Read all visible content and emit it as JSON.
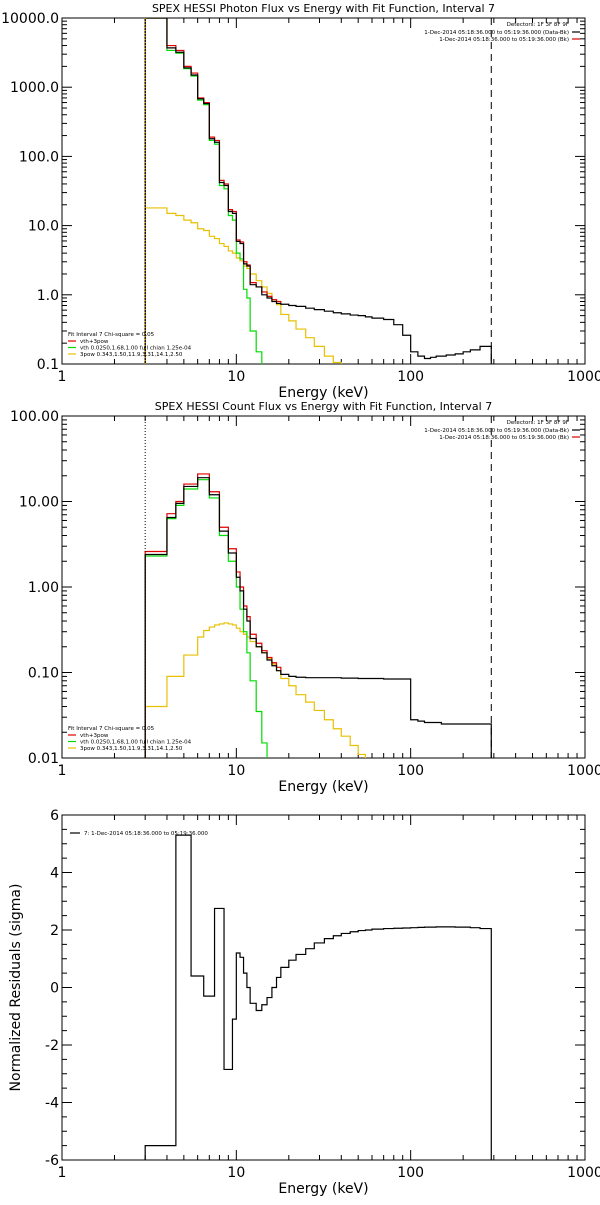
{
  "colors": {
    "black": "#000000",
    "red": "#e00000",
    "green": "#00dd00",
    "orange": "#e8c000",
    "bg": "#ffffff"
  },
  "chart_data": [
    {
      "type": "line",
      "title": "SPEX HESSI Photon Flux vs Energy with Fit Function, Interval 7",
      "xlabel": "Energy (keV)",
      "ylabel": "",
      "xscale": "log",
      "yscale": "log",
      "xlim": [
        1,
        1000
      ],
      "ylim": [
        0.1,
        10000
      ],
      "xticks": [
        "1",
        "10",
        "100",
        "1000"
      ],
      "yticks": [
        "0.1",
        "1.0",
        "10.0",
        "100.0",
        "1000.0",
        "10000.0"
      ],
      "detectors_label": "Detectors: 1F 3F 8F 9F",
      "legend_right": [
        {
          "text": "1-Dec-2014 05:18:36.000 to 05:19:36.000 (Data-Bk)",
          "color": "#000000"
        },
        {
          "text": "1-Dec-2014 05:18:36.000 to 05:19:36.000 (Bk)",
          "color": "#e00000"
        }
      ],
      "fit_header": "Fit Interval 7   Chi-square = 0.05",
      "legend_left": [
        {
          "text": "vth+3pow",
          "color": "#e00000"
        },
        {
          "text": "vth 0.0250,1.68,1.00  full chian 1.25e-04",
          "color": "#00dd00"
        },
        {
          "text": "3pow 0.343,1.50,11.9,3.31,14.1,2.50",
          "color": "#e8c000"
        }
      ],
      "marker_lines": [
        {
          "x": 3,
          "style": "dotted",
          "color": "#e8c000"
        },
        {
          "x": 290,
          "style": "dashed",
          "color": "#000000"
        }
      ],
      "series": [
        {
          "name": "Data-Bk",
          "color": "#000000",
          "edges": [
            3,
            3.5,
            4,
            4.5,
            5,
            5.5,
            6,
            6.5,
            7,
            7.5,
            8,
            8.5,
            9,
            9.5,
            10,
            10.5,
            11,
            11.5,
            12,
            13,
            14,
            15,
            16,
            17,
            18,
            20,
            22,
            25,
            28,
            32,
            36,
            40,
            45,
            50,
            55,
            60,
            70,
            80,
            90,
            100,
            110,
            120,
            130,
            140,
            160,
            180,
            200,
            220,
            250,
            290
          ],
          "values": [
            10000,
            10000,
            3700,
            3200,
            1900,
            1500,
            680,
            580,
            180,
            160,
            42,
            38,
            16,
            15,
            5.9,
            5.5,
            2.8,
            2.6,
            1.4,
            1.3,
            1.0,
            0.9,
            0.8,
            0.75,
            0.73,
            0.7,
            0.68,
            0.64,
            0.61,
            0.58,
            0.55,
            0.53,
            0.51,
            0.5,
            0.48,
            0.46,
            0.44,
            0.37,
            0.26,
            0.15,
            0.13,
            0.12,
            0.125,
            0.13,
            0.135,
            0.14,
            0.15,
            0.16,
            0.18
          ]
        },
        {
          "name": "vth+3pow",
          "color": "#e00000",
          "edges": [
            3,
            3.5,
            4,
            4.5,
            5,
            5.5,
            6,
            6.5,
            7,
            7.5,
            8,
            8.5,
            9,
            9.5,
            10,
            10.5,
            11,
            11.5,
            12,
            13,
            14,
            15,
            16,
            17,
            18
          ],
          "values": [
            10000,
            10000,
            4000,
            3400,
            2000,
            1600,
            700,
            600,
            190,
            170,
            45,
            40,
            17,
            16,
            6.2,
            5.8,
            3.0,
            2.7,
            1.5,
            1.3,
            1.1,
            0.95,
            0.85,
            0.8,
            0.76
          ]
        },
        {
          "name": "vth",
          "color": "#00dd00",
          "edges": [
            3,
            3.5,
            4,
            4.5,
            5,
            5.5,
            6,
            6.5,
            7,
            7.5,
            8,
            8.5,
            9,
            9.5,
            10,
            10.5,
            11,
            11.5,
            12,
            13,
            14
          ],
          "values": [
            10000,
            10000,
            3400,
            3100,
            1850,
            1450,
            650,
            560,
            170,
            150,
            38,
            34,
            14,
            12,
            4.0,
            3.3,
            1.2,
            0.9,
            0.3,
            0.15
          ]
        },
        {
          "name": "3pow",
          "color": "#e8c000",
          "edges": [
            3,
            3.5,
            4,
            4.5,
            5,
            5.5,
            6,
            6.5,
            7,
            7.5,
            8,
            8.5,
            9,
            9.5,
            10,
            10.5,
            11,
            11.5,
            12,
            13,
            14,
            15,
            16,
            17,
            18,
            20,
            22,
            25,
            28,
            32,
            36,
            40
          ],
          "values": [
            18,
            18,
            15,
            14,
            12,
            11,
            9,
            8.5,
            7,
            6.5,
            5.5,
            5,
            4.3,
            4,
            3.4,
            3.1,
            2.6,
            2.4,
            2.0,
            1.6,
            1.3,
            1.05,
            0.85,
            0.72,
            0.52,
            0.42,
            0.32,
            0.24,
            0.18,
            0.13,
            0.105
          ]
        }
      ]
    },
    {
      "type": "line",
      "title": "SPEX HESSI Count Flux vs Energy with Fit Function, Interval 7",
      "xlabel": "Energy (keV)",
      "ylabel": "",
      "xscale": "log",
      "yscale": "log",
      "xlim": [
        1,
        1000
      ],
      "ylim": [
        0.01,
        100
      ],
      "xticks": [
        "1",
        "10",
        "100",
        "1000"
      ],
      "yticks": [
        "0.01",
        "0.10",
        "1.00",
        "10.00",
        "100.00"
      ],
      "detectors_label": "Detectors: 1F 3F 8F 9F",
      "legend_right": [
        {
          "text": "1-Dec-2014 05:18:36.000 to 05:19:36.000 (Data-Bk)",
          "color": "#000000"
        },
        {
          "text": "1-Dec-2014 05:18:36.000 to 05:19:36.000 (Bk)",
          "color": "#e00000"
        }
      ],
      "fit_header": "Fit Interval 7   Chi-square = 0.05",
      "legend_left": [
        {
          "text": "vth+3pow",
          "color": "#e00000"
        },
        {
          "text": "vth 0.0250,1.68,1.00  full chian 1.25e-04",
          "color": "#00dd00"
        },
        {
          "text": "3pow 0.343,1.50,11.9,3.31,14.1,2.50",
          "color": "#e8c000"
        }
      ],
      "marker_lines": [
        {
          "x": 3,
          "style": "dotted",
          "color": "#000000"
        },
        {
          "x": 290,
          "style": "dashed",
          "color": "#000000"
        }
      ],
      "series": [
        {
          "name": "Data-Bk",
          "color": "#000000",
          "edges": [
            3,
            3.5,
            4,
            4.5,
            5,
            5.5,
            6,
            6.5,
            7,
            7.5,
            8,
            8.5,
            9,
            9.5,
            10,
            10.5,
            11,
            11.5,
            12,
            13,
            14,
            15,
            16,
            17,
            18,
            20,
            22,
            25,
            28,
            32,
            36,
            40,
            45,
            50,
            55,
            60,
            70,
            80,
            90,
            100,
            110,
            120,
            150,
            200,
            290
          ],
          "values": [
            2.4,
            2.4,
            6.5,
            9.5,
            15,
            15,
            19,
            19,
            12,
            12,
            4.5,
            4.5,
            2.5,
            2.5,
            1.3,
            0.9,
            0.55,
            0.4,
            0.25,
            0.2,
            0.17,
            0.14,
            0.12,
            0.105,
            0.095,
            0.09,
            0.088,
            0.087,
            0.087,
            0.087,
            0.087,
            0.086,
            0.086,
            0.085,
            0.085,
            0.085,
            0.084,
            0.084,
            0.084,
            0.028,
            0.027,
            0.026,
            0.025,
            0.025
          ]
        },
        {
          "name": "vth+3pow",
          "color": "#e00000",
          "edges": [
            3,
            3.5,
            4,
            4.5,
            5,
            5.5,
            6,
            6.5,
            7,
            7.5,
            8,
            8.5,
            9,
            9.5,
            10,
            10.5,
            11,
            11.5,
            12,
            13,
            14,
            15,
            16,
            17,
            18
          ],
          "values": [
            2.6,
            2.6,
            7.2,
            10,
            16,
            16,
            21,
            21,
            13,
            13,
            5,
            5,
            2.8,
            2.8,
            1.5,
            1.0,
            0.6,
            0.45,
            0.28,
            0.22,
            0.18,
            0.15,
            0.13,
            0.115,
            0.1
          ]
        },
        {
          "name": "vth",
          "color": "#00dd00",
          "edges": [
            3,
            3.5,
            4,
            4.5,
            5,
            5.5,
            6,
            6.5,
            7,
            7.5,
            8,
            8.5,
            9,
            9.5,
            10,
            10.5,
            11,
            11.5,
            12,
            13,
            14,
            15
          ],
          "values": [
            2.3,
            2.3,
            6.3,
            9,
            14,
            14,
            18,
            18,
            11,
            11,
            4,
            4,
            2,
            2,
            1.0,
            0.55,
            0.3,
            0.17,
            0.08,
            0.035,
            0.015
          ]
        },
        {
          "name": "3pow",
          "color": "#e8c000",
          "edges": [
            3,
            4,
            5,
            6,
            6.5,
            7,
            7.5,
            8,
            8.5,
            9,
            9.5,
            10,
            10.5,
            11,
            11.5,
            12,
            13,
            14,
            15,
            16,
            17,
            18,
            20,
            22,
            25,
            28,
            32,
            36,
            40,
            45,
            50,
            55,
            60
          ],
          "values": [
            0.04,
            0.09,
            0.16,
            0.26,
            0.31,
            0.34,
            0.36,
            0.37,
            0.38,
            0.37,
            0.36,
            0.33,
            0.3,
            0.28,
            0.26,
            0.23,
            0.2,
            0.17,
            0.145,
            0.125,
            0.105,
            0.085,
            0.07,
            0.055,
            0.045,
            0.036,
            0.028,
            0.022,
            0.018,
            0.014,
            0.011,
            0.0095
          ]
        }
      ]
    },
    {
      "type": "line",
      "title": "",
      "xlabel": "Energy (keV)",
      "ylabel": "Normalized Residuals (sigma)",
      "xscale": "log",
      "yscale": "linear",
      "xlim": [
        1,
        1000
      ],
      "ylim": [
        -6,
        6
      ],
      "xticks": [
        "1",
        "10",
        "100",
        "1000"
      ],
      "yticks": [
        "-6",
        "-4",
        "-2",
        "0",
        "2",
        "4",
        "6"
      ],
      "legend_left": [
        {
          "text": "7:  1-Dec-2014 05:18:36.000 to 05:19:36.000",
          "color": "#000000"
        }
      ],
      "series": [
        {
          "name": "7",
          "color": "#000000",
          "edges": [
            3,
            4,
            4.5,
            5,
            5.5,
            6,
            6.5,
            7,
            7.5,
            8,
            8.5,
            9,
            9.5,
            10,
            10.5,
            11,
            11.5,
            12,
            13,
            14,
            15,
            16,
            17,
            18,
            20,
            22,
            25,
            28,
            32,
            36,
            40,
            45,
            50,
            55,
            60,
            70,
            80,
            90,
            100,
            110,
            120,
            130,
            140,
            160,
            180,
            200,
            220,
            250,
            290
          ],
          "values": [
            -5.5,
            -5.5,
            5.3,
            5.3,
            0.4,
            0.4,
            -0.3,
            -0.3,
            2.75,
            2.75,
            -2.85,
            -2.85,
            -1.1,
            1.2,
            1.05,
            0.5,
            0.0,
            -0.55,
            -0.8,
            -0.6,
            -0.35,
            0.0,
            0.35,
            0.7,
            0.95,
            1.15,
            1.35,
            1.55,
            1.7,
            1.8,
            1.88,
            1.94,
            1.98,
            2.0,
            2.03,
            2.05,
            2.06,
            2.07,
            2.08,
            2.09,
            2.1,
            2.1,
            2.11,
            2.11,
            2.1,
            2.1,
            2.08,
            2.05
          ]
        }
      ]
    }
  ]
}
